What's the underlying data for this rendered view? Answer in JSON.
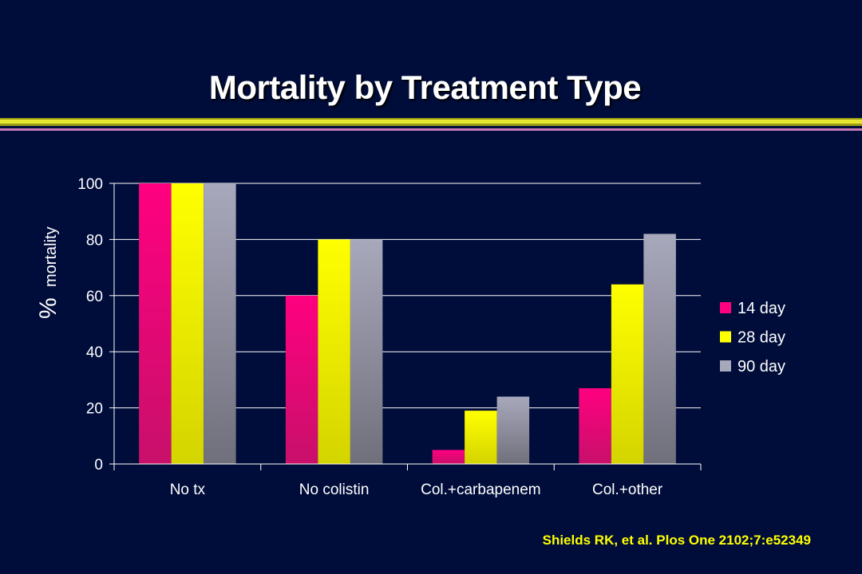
{
  "slide": {
    "title": "Mortality by Treatment Type",
    "citation": "Shields RK, et al. Plos One 2102;7:e52349"
  },
  "chart_data": {
    "type": "bar",
    "title": "Mortality by Treatment Type",
    "ylabel_symbol": "%",
    "ylabel_text": "mortality",
    "xlabel": "",
    "categories": [
      "No tx",
      "No colistin",
      "Col.+carbapenem",
      "Col.+other"
    ],
    "series": [
      {
        "name": "14 day",
        "values": [
          100,
          60,
          5,
          27
        ],
        "color": "#ff0080",
        "color_dark": "#c8106a"
      },
      {
        "name": "28 day",
        "values": [
          100,
          80,
          19,
          64
        ],
        "color": "#ffff00",
        "color_dark": "#d4d400"
      },
      {
        "name": "90 day",
        "values": [
          100,
          80,
          24,
          82
        ],
        "color": "#a8a8bc",
        "color_dark": "#70707c"
      }
    ],
    "ylim": [
      0,
      100
    ],
    "yticks": [
      0,
      20,
      40,
      60,
      80,
      100
    ],
    "grid": true,
    "legend_position": "right"
  }
}
